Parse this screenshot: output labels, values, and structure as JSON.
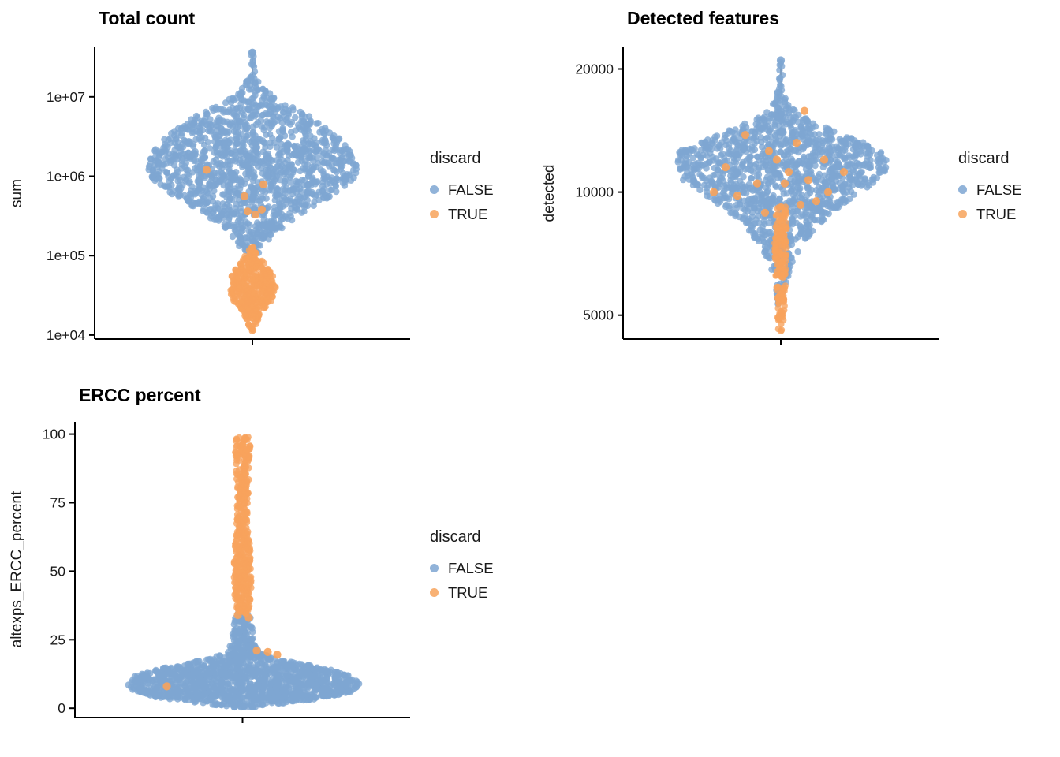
{
  "colors": {
    "false_color": "#7EA6D2",
    "true_color": "#F7A35C",
    "axis_color": "#000000",
    "stem_color": "#4a4a4a",
    "background": "#FFFFFF"
  },
  "legend": {
    "title": "discard",
    "items": [
      {
        "label": "FALSE",
        "color_key": "false_color"
      },
      {
        "label": "TRUE",
        "color_key": "true_color"
      }
    ]
  },
  "chart_data": [
    {
      "id": "total-count",
      "type": "violin-scatter",
      "title": "Total count",
      "ylabel": "sum",
      "yscale": "log10",
      "ydomain": [
        8900,
        42000000
      ],
      "yticks": [
        {
          "value": 10000,
          "label": "1e+04"
        },
        {
          "value": 100000,
          "label": "1e+05"
        },
        {
          "value": 1000000,
          "label": "1e+06"
        },
        {
          "value": 10000000,
          "label": "1e+07"
        }
      ],
      "x_categories": [
        ""
      ],
      "stem": {
        "from": 36000000,
        "to": 14000000
      },
      "series": [
        {
          "name": "FALSE",
          "color_key": "false_color",
          "n": 1500,
          "dot_radius": 4.2,
          "profile": [
            [
              36000000,
              2
            ],
            [
              25000000,
              2
            ],
            [
              18000000,
              4
            ],
            [
              12600000,
              14
            ],
            [
              10000000,
              30
            ],
            [
              7100000,
              55
            ],
            [
              5000000,
              82
            ],
            [
              3200000,
              108
            ],
            [
              2000000,
              126
            ],
            [
              1260000,
              135
            ],
            [
              890000,
              128
            ],
            [
              630000,
              108
            ],
            [
              450000,
              82
            ],
            [
              320000,
              58
            ],
            [
              220000,
              38
            ],
            [
              160000,
              22
            ],
            [
              110000,
              12
            ],
            [
              90000,
              6
            ]
          ],
          "extras": [
            [
              36000000,
              0
            ]
          ]
        },
        {
          "name": "TRUE",
          "color_key": "true_color",
          "n": 380,
          "dot_radius": 4.2,
          "profile": [
            [
              130000,
              3
            ],
            [
              112000,
              6
            ],
            [
              90000,
              12
            ],
            [
              71000,
              20
            ],
            [
              56000,
              26
            ],
            [
              42000,
              30
            ],
            [
              32000,
              28
            ],
            [
              25000,
              22
            ],
            [
              20000,
              14
            ],
            [
              16000,
              8
            ],
            [
              12600,
              4
            ],
            [
              10500,
              2
            ]
          ],
          "extras": [
            [
              360000,
              -6
            ],
            [
              330000,
              4
            ],
            [
              380000,
              12
            ],
            [
              1200000,
              -58
            ],
            [
              790000,
              14
            ],
            [
              560000,
              -10
            ]
          ]
        }
      ]
    },
    {
      "id": "detected-features",
      "type": "violin-scatter",
      "title": "Detected features",
      "ylabel": "detected",
      "yscale": "log10",
      "ydomain": [
        4370,
        22600
      ],
      "yticks": [
        {
          "value": 5000,
          "label": "5000"
        },
        {
          "value": 10000,
          "label": "10000"
        },
        {
          "value": 20000,
          "label": "20000"
        }
      ],
      "x_categories": [
        ""
      ],
      "stem": {
        "from": 21000,
        "to": 17500
      },
      "series": [
        {
          "name": "FALSE",
          "color_key": "false_color",
          "n": 1400,
          "dot_radius": 4.2,
          "profile": [
            [
              21000,
              2
            ],
            [
              18200,
              3
            ],
            [
              16600,
              8
            ],
            [
              15500,
              22
            ],
            [
              14500,
              52
            ],
            [
              13500,
              95
            ],
            [
              12600,
              128
            ],
            [
              11750,
              138
            ],
            [
              10700,
              125
            ],
            [
              10000,
              100
            ],
            [
              9100,
              72
            ],
            [
              8300,
              48
            ],
            [
              7600,
              30
            ],
            [
              6900,
              18
            ],
            [
              6300,
              10
            ],
            [
              5750,
              6
            ],
            [
              5250,
              4
            ]
          ],
          "extras": [
            [
              21000,
              0
            ]
          ]
        },
        {
          "name": "TRUE",
          "color_key": "true_color",
          "n": 160,
          "dot_radius": 4.2,
          "profile": [
            [
              9300,
              6
            ],
            [
              8500,
              7
            ],
            [
              7800,
              8
            ],
            [
              7100,
              8
            ],
            [
              6450,
              7
            ],
            [
              5900,
              6
            ],
            [
              5370,
              5
            ],
            [
              4900,
              4
            ],
            [
              4570,
              3
            ]
          ],
          "extras": [
            [
              15800,
              30
            ],
            [
              13800,
              -45
            ],
            [
              13200,
              20
            ],
            [
              12600,
              -15
            ],
            [
              12000,
              55
            ],
            [
              11500,
              -70
            ],
            [
              11200,
              10
            ],
            [
              10700,
              35
            ],
            [
              10500,
              -30
            ],
            [
              10000,
              60
            ],
            [
              9800,
              -55
            ],
            [
              9300,
              25
            ],
            [
              8900,
              -20
            ],
            [
              11200,
              80
            ],
            [
              10000,
              -85
            ],
            [
              12000,
              -5
            ],
            [
              10500,
              5
            ],
            [
              9500,
              45
            ]
          ]
        }
      ]
    },
    {
      "id": "ercc-percent",
      "type": "violin-scatter",
      "title": "ERCC percent",
      "ylabel": "altexps_ERCC_percent",
      "yscale": "linear",
      "ydomain": [
        -3.4,
        104.5
      ],
      "yticks": [
        {
          "value": 0,
          "label": "0"
        },
        {
          "value": 25,
          "label": "25"
        },
        {
          "value": 50,
          "label": "50"
        },
        {
          "value": 75,
          "label": "75"
        },
        {
          "value": 100,
          "label": "100"
        }
      ],
      "x_categories": [
        ""
      ],
      "stem": null,
      "series": [
        {
          "name": "FALSE",
          "color_key": "false_color",
          "n": 1500,
          "dot_radius": 4.2,
          "profile": [
            [
              36,
              6
            ],
            [
              34,
              9
            ],
            [
              32,
              11
            ],
            [
              30,
              12
            ],
            [
              28,
              13
            ],
            [
              26,
              14
            ],
            [
              24,
              15
            ],
            [
              22,
              17
            ],
            [
              20,
              24
            ],
            [
              18,
              44
            ],
            [
              16,
              78
            ],
            [
              14,
              112
            ],
            [
              12,
              134
            ],
            [
              10,
              146
            ],
            [
              8,
              150
            ],
            [
              6,
              138
            ],
            [
              4,
              110
            ],
            [
              2.5,
              70
            ],
            [
              1.2,
              34
            ],
            [
              0.3,
              12
            ]
          ],
          "extras": []
        },
        {
          "name": "TRUE",
          "color_key": "true_color",
          "n": 420,
          "dot_radius": 4.2,
          "profile": [
            [
              100,
              3
            ],
            [
              99,
              8
            ],
            [
              97,
              10
            ],
            [
              95,
              10
            ],
            [
              92,
              9
            ],
            [
              89,
              8
            ],
            [
              86,
              8
            ],
            [
              83,
              8
            ],
            [
              80,
              8
            ],
            [
              77,
              7
            ],
            [
              74,
              7
            ],
            [
              70,
              7
            ],
            [
              66,
              8
            ],
            [
              62,
              9
            ],
            [
              58,
              10
            ],
            [
              54,
              11
            ],
            [
              50,
              11
            ],
            [
              46,
              11
            ],
            [
              42,
              11
            ],
            [
              39,
              10
            ],
            [
              37,
              9
            ],
            [
              35.5,
              7
            ],
            [
              34.5,
              5
            ]
          ],
          "extras": [
            [
              21,
              18
            ],
            [
              20.5,
              32
            ],
            [
              19.5,
              44
            ],
            [
              8,
              -96
            ],
            [
              33,
              8
            ],
            [
              34,
              -6
            ]
          ]
        }
      ]
    }
  ]
}
